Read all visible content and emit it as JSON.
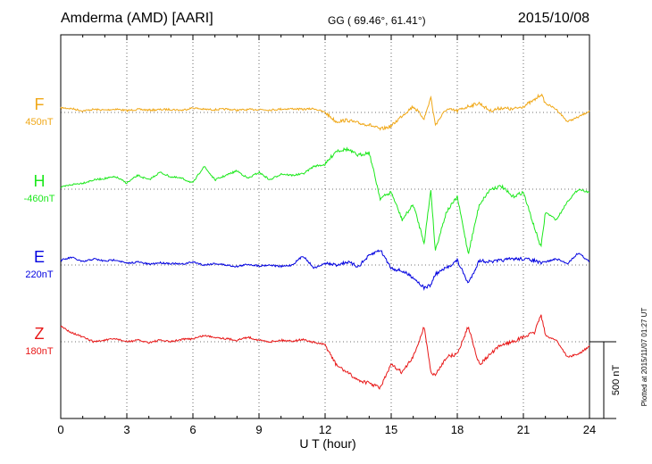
{
  "chart_data": {
    "type": "line",
    "title": "Amderma (AMD)  [AARI]",
    "coords": "GG ( 69.46°,  61.41°)",
    "date": "2015/10/08",
    "xlabel": "U T (hour)",
    "xlim": [
      0,
      24
    ],
    "xticks": [
      "0",
      "3",
      "6",
      "9",
      "12",
      "15",
      "18",
      "21",
      "24"
    ],
    "grid": true,
    "plot_note": "Plotted at 2015/11/07 01:27 UT",
    "scale_bar": {
      "label": "500 nT",
      "value_nT": 500
    },
    "series": [
      {
        "name": "F",
        "baseline": "450nT",
        "color": "#f0a818",
        "x": [
          0,
          0.5,
          1,
          1.5,
          2,
          2.5,
          3,
          3.5,
          4,
          4.5,
          5,
          5.5,
          6,
          6.5,
          7,
          7.5,
          8,
          8.5,
          9,
          9.5,
          10,
          10.5,
          11,
          11.5,
          12,
          12.5,
          13,
          13.5,
          14,
          14.5,
          15,
          15.5,
          16,
          16.5,
          16.8,
          17,
          17.5,
          18,
          18.5,
          19,
          19.5,
          20,
          20.5,
          21,
          21.5,
          21.8,
          22,
          22.5,
          23,
          23.5,
          24
        ],
        "y": [
          30,
          25,
          10,
          20,
          15,
          22,
          12,
          20,
          15,
          18,
          20,
          14,
          30,
          20,
          18,
          22,
          15,
          18,
          20,
          16,
          22,
          24,
          20,
          25,
          0,
          -60,
          -50,
          -70,
          -80,
          -110,
          -90,
          -20,
          40,
          -40,
          100,
          -80,
          20,
          10,
          40,
          60,
          10,
          30,
          20,
          40,
          80,
          120,
          60,
          20,
          -60,
          -30,
          10
        ]
      },
      {
        "name": "H",
        "baseline": "-460nT",
        "color": "#1ce81c",
        "x": [
          0,
          0.5,
          1,
          1.5,
          2,
          2.5,
          3,
          3.5,
          4,
          4.5,
          5,
          5.5,
          6,
          6.5,
          7,
          7.5,
          8,
          8.5,
          9,
          9.5,
          10,
          10.5,
          11,
          11.5,
          12,
          12.5,
          13,
          13.5,
          14,
          14.5,
          15,
          15.5,
          16,
          16.5,
          16.8,
          17,
          17.5,
          18,
          18.5,
          19,
          19.5,
          20,
          20.5,
          21,
          21.5,
          21.8,
          22,
          22.5,
          23,
          23.5,
          24
        ],
        "y": [
          10,
          30,
          40,
          60,
          70,
          80,
          40,
          90,
          60,
          110,
          80,
          70,
          40,
          150,
          60,
          90,
          120,
          70,
          110,
          60,
          100,
          90,
          100,
          150,
          160,
          250,
          260,
          220,
          240,
          -60,
          -20,
          -200,
          -100,
          -350,
          0,
          -400,
          -150,
          -50,
          -420,
          -100,
          0,
          20,
          -50,
          -20,
          -250,
          -380,
          -150,
          -200,
          -80,
          0,
          -20
        ]
      },
      {
        "name": "E",
        "baseline": "220nT",
        "color": "#0000e0",
        "x": [
          0,
          0.5,
          1,
          1.5,
          2,
          2.5,
          3,
          3.5,
          4,
          4.5,
          5,
          5.5,
          6,
          6.5,
          7,
          7.5,
          8,
          8.5,
          9,
          9.5,
          10,
          10.5,
          11,
          11.5,
          12,
          12.5,
          13,
          13.5,
          14,
          14.5,
          15,
          15.5,
          16,
          16.5,
          16.8,
          17,
          17.5,
          18,
          18.5,
          19,
          19.5,
          20,
          20.5,
          21,
          21.5,
          21.8,
          22,
          22.5,
          23,
          23.5,
          24
        ],
        "y": [
          30,
          50,
          20,
          40,
          25,
          35,
          10,
          20,
          5,
          15,
          10,
          5,
          20,
          0,
          10,
          0,
          -10,
          5,
          -5,
          0,
          -10,
          0,
          60,
          -20,
          10,
          0,
          20,
          -10,
          60,
          100,
          -20,
          -40,
          -80,
          -150,
          -130,
          -60,
          -20,
          30,
          -120,
          30,
          20,
          30,
          40,
          40,
          30,
          10,
          20,
          40,
          10,
          80,
          20
        ]
      },
      {
        "name": "Z",
        "baseline": "180nT",
        "color": "#e81818",
        "x": [
          0,
          0.5,
          1,
          1.5,
          2,
          2.5,
          3,
          3.5,
          4,
          4.5,
          5,
          5.5,
          6,
          6.5,
          7,
          7.5,
          8,
          8.5,
          9,
          9.5,
          10,
          10.5,
          11,
          11.5,
          12,
          12.5,
          13,
          13.5,
          14,
          14.5,
          15,
          15.5,
          16,
          16.5,
          16.8,
          17,
          17.5,
          18,
          18.5,
          19,
          19.5,
          20,
          20.5,
          21,
          21.5,
          21.8,
          22,
          22.5,
          23,
          23.5,
          24
        ],
        "y": [
          100,
          60,
          30,
          0,
          10,
          20,
          0,
          10,
          -5,
          10,
          0,
          15,
          20,
          40,
          30,
          20,
          10,
          30,
          10,
          0,
          10,
          5,
          15,
          -5,
          -20,
          -150,
          -200,
          -250,
          -270,
          -300,
          -150,
          -200,
          -100,
          100,
          -200,
          -220,
          -100,
          -80,
          100,
          -150,
          -80,
          -20,
          0,
          30,
          60,
          180,
          40,
          10,
          -100,
          -80,
          -30
        ]
      }
    ]
  }
}
